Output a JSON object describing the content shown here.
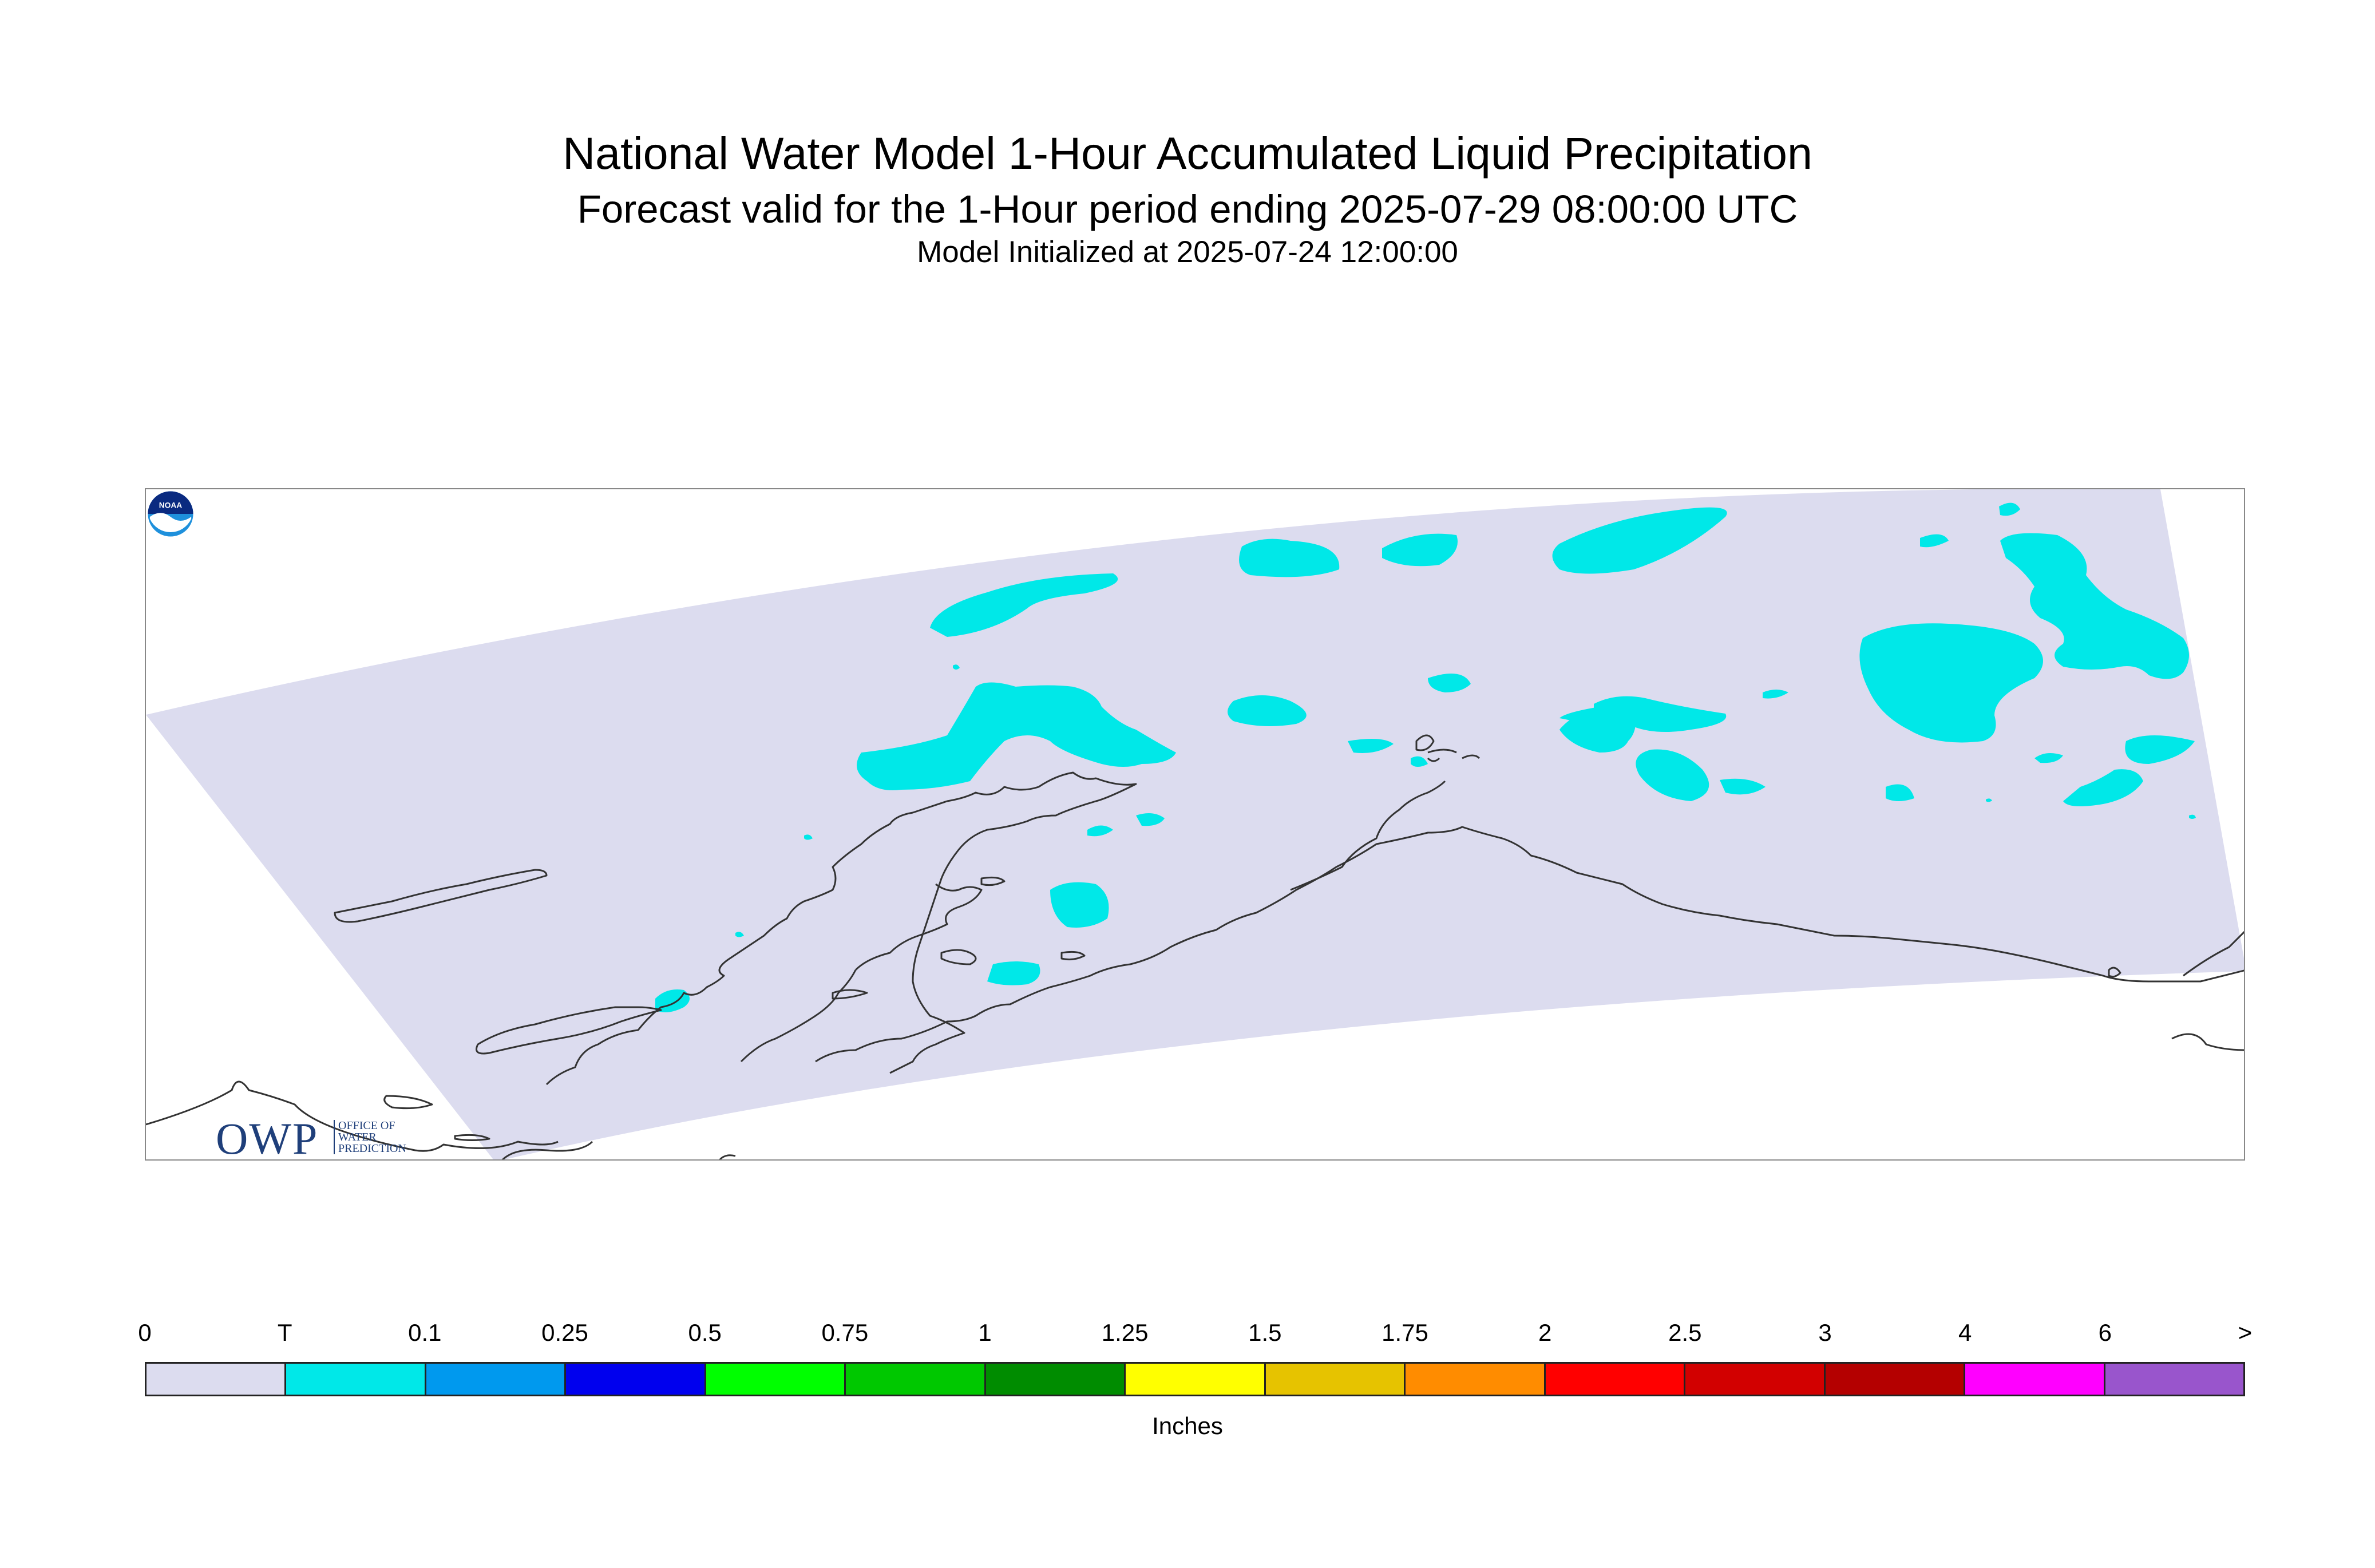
{
  "title": "National Water Model 1-Hour Accumulated Liquid Precipitation",
  "subtitle": "Forecast valid for the 1-Hour period ending 2025-07-29 08:00:00 UTC",
  "init_line": "Model Initialized at 2025-07-24 12:00:00",
  "logos": {
    "owp_big": "OWP",
    "owp_small": [
      "OFFICE OF",
      "WATER",
      "PREDICTION"
    ],
    "noaa": "NOAA"
  },
  "colors": {
    "domain_fill": "#dcdcef",
    "trace_fill": "#00e8e8",
    "coastline": "#333333"
  },
  "legend": {
    "ticks": [
      "0",
      "T",
      "0.1",
      "0.25",
      "0.5",
      "0.75",
      "1",
      "1.25",
      "1.5",
      "1.75",
      "2",
      "2.5",
      "3",
      "4",
      "6",
      ">"
    ],
    "colors": [
      "#dcdcef",
      "#00e8e8",
      "#0099ee",
      "#0000ee",
      "#00ff00",
      "#00c800",
      "#008c00",
      "#ffff00",
      "#e6c300",
      "#ff8c00",
      "#ff0000",
      "#d20000",
      "#b40000",
      "#ff00ff",
      "#9955cc"
    ],
    "units": "Inches"
  }
}
